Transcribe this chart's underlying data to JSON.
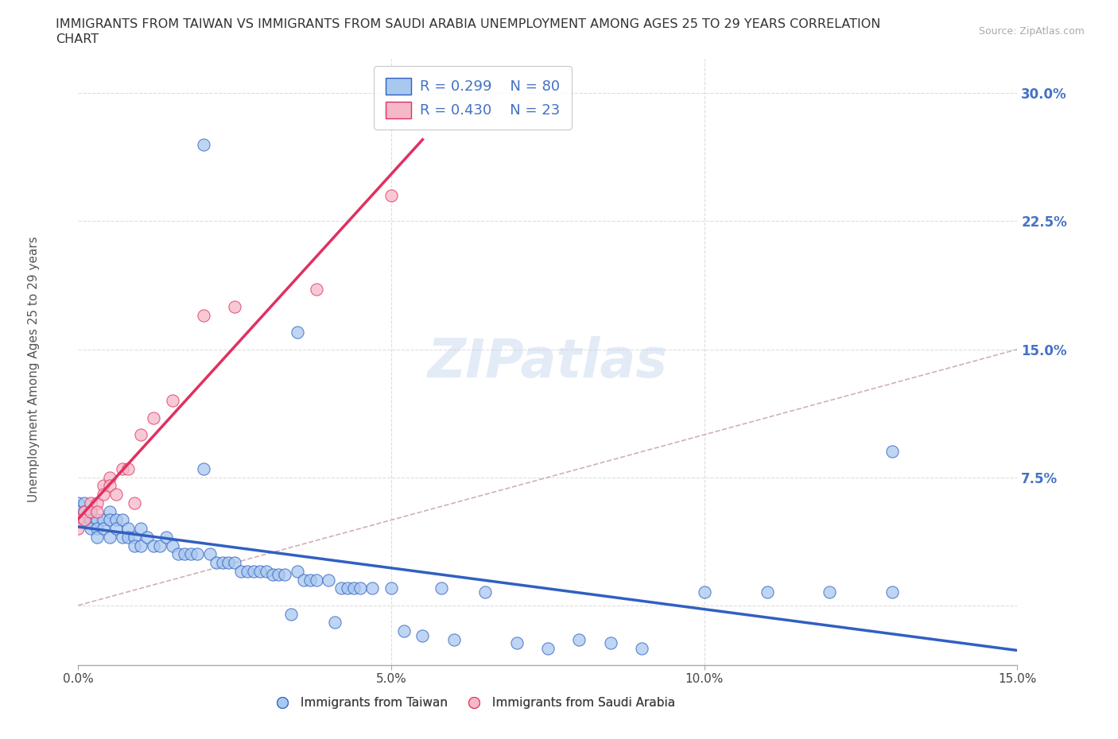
{
  "title_line1": "IMMIGRANTS FROM TAIWAN VS IMMIGRANTS FROM SAUDI ARABIA UNEMPLOYMENT AMONG AGES 25 TO 29 YEARS CORRELATION",
  "title_line2": "CHART",
  "source_text": "Source: ZipAtlas.com",
  "ylabel": "Unemployment Among Ages 25 to 29 years",
  "legend_r": [
    0.299,
    0.43
  ],
  "legend_n": [
    80,
    23
  ],
  "taiwan_color": "#a8c8f0",
  "saudi_color": "#f5b8c8",
  "taiwan_line_color": "#3060c0",
  "saudi_line_color": "#e03060",
  "ref_line_color": "#d0b0b8",
  "watermark": "ZIPatlas",
  "xlim": [
    0.0,
    0.15
  ],
  "ylim": [
    -0.035,
    0.32
  ],
  "xtick_vals": [
    0.0,
    0.05,
    0.1,
    0.15
  ],
  "ytick_vals": [
    0.0,
    0.075,
    0.15,
    0.225,
    0.3
  ],
  "xticklabels": [
    "0.0%",
    "5.0%",
    "10.0%",
    "15.0%"
  ],
  "yticklabels_right": [
    "",
    "7.5%",
    "15.0%",
    "22.5%",
    "30.0%"
  ],
  "taiwan_x": [
    0.0,
    0.0,
    0.0,
    0.001,
    0.001,
    0.001,
    0.002,
    0.002,
    0.002,
    0.003,
    0.003,
    0.003,
    0.004,
    0.004,
    0.005,
    0.005,
    0.005,
    0.006,
    0.006,
    0.007,
    0.007,
    0.008,
    0.008,
    0.009,
    0.009,
    0.01,
    0.01,
    0.011,
    0.012,
    0.013,
    0.014,
    0.015,
    0.016,
    0.017,
    0.018,
    0.019,
    0.02,
    0.021,
    0.022,
    0.023,
    0.024,
    0.025,
    0.026,
    0.027,
    0.028,
    0.029,
    0.03,
    0.031,
    0.032,
    0.033,
    0.034,
    0.035,
    0.036,
    0.037,
    0.038,
    0.04,
    0.041,
    0.042,
    0.043,
    0.044,
    0.045,
    0.047,
    0.05,
    0.052,
    0.055,
    0.058,
    0.06,
    0.065,
    0.07,
    0.075,
    0.08,
    0.085,
    0.09,
    0.1,
    0.11,
    0.12,
    0.13,
    0.13,
    0.02,
    0.035
  ],
  "taiwan_y": [
    0.06,
    0.055,
    0.05,
    0.06,
    0.055,
    0.05,
    0.055,
    0.05,
    0.045,
    0.05,
    0.045,
    0.04,
    0.05,
    0.045,
    0.055,
    0.05,
    0.04,
    0.05,
    0.045,
    0.05,
    0.04,
    0.045,
    0.04,
    0.04,
    0.035,
    0.045,
    0.035,
    0.04,
    0.035,
    0.035,
    0.04,
    0.035,
    0.03,
    0.03,
    0.03,
    0.03,
    0.08,
    0.03,
    0.025,
    0.025,
    0.025,
    0.025,
    0.02,
    0.02,
    0.02,
    0.02,
    0.02,
    0.018,
    0.018,
    0.018,
    -0.005,
    0.02,
    0.015,
    0.015,
    0.015,
    0.015,
    -0.01,
    0.01,
    0.01,
    0.01,
    0.01,
    0.01,
    0.01,
    -0.015,
    -0.018,
    0.01,
    -0.02,
    0.008,
    -0.022,
    -0.025,
    -0.02,
    -0.022,
    -0.025,
    0.008,
    0.008,
    0.008,
    0.008,
    0.09,
    0.27,
    0.16
  ],
  "saudi_x": [
    0.0,
    0.0,
    0.001,
    0.001,
    0.002,
    0.002,
    0.003,
    0.003,
    0.004,
    0.004,
    0.005,
    0.005,
    0.006,
    0.007,
    0.008,
    0.009,
    0.01,
    0.012,
    0.015,
    0.02,
    0.025,
    0.038,
    0.05
  ],
  "saudi_y": [
    0.05,
    0.045,
    0.055,
    0.05,
    0.06,
    0.055,
    0.06,
    0.055,
    0.07,
    0.065,
    0.075,
    0.07,
    0.065,
    0.08,
    0.08,
    0.06,
    0.1,
    0.11,
    0.12,
    0.17,
    0.175,
    0.185,
    0.24
  ]
}
